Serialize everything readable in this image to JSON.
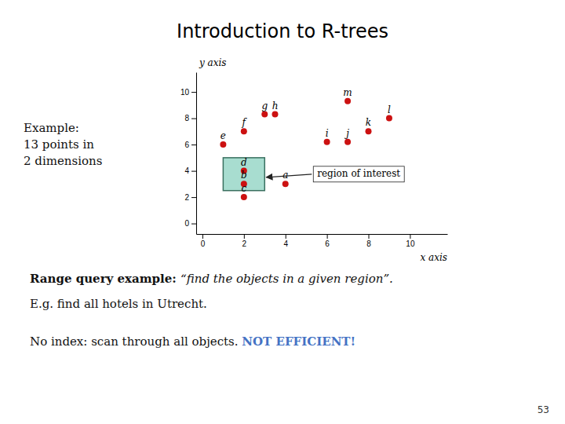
{
  "chart_data": {
    "type": "scatter",
    "title": "Introduction to R-trees",
    "x": [
      4,
      2,
      2,
      2,
      1,
      2,
      3,
      3.5,
      6,
      7,
      8,
      9,
      7
    ],
    "values": [
      3,
      3,
      2,
      4,
      6,
      7,
      8.3,
      8.3,
      6.2,
      6.2,
      7,
      8,
      9.3
    ],
    "labels": [
      "a",
      "b",
      "c",
      "d",
      "e",
      "f",
      "g",
      "h",
      "i",
      "j",
      "k",
      "l",
      "m"
    ],
    "color": "#cc1111",
    "xlim": [
      -0.3,
      11.8
    ],
    "ylim": [
      -0.8,
      11.5
    ],
    "xticks": [
      0,
      2,
      4,
      6,
      8,
      10
    ],
    "yticks": [
      0,
      2,
      4,
      6,
      8,
      10
    ],
    "xlabel": "x axis",
    "ylabel": "y axis",
    "region": {
      "x": 1.0,
      "y": 2.5,
      "width": 2.0,
      "height": 2.5,
      "label": "region of interest",
      "color": "#a8ddd0",
      "edge_color": "#3a7060"
    },
    "side_note": [
      "Example:",
      "13 points in",
      "2 dimensions"
    ],
    "notes": [
      [
        {
          "text": "Range query example: ",
          "weight": "bold"
        },
        {
          "text": "“find the objects in a given region”.",
          "style": "italic"
        }
      ],
      [
        {
          "text": "E.g. find all hotels in Utrecht."
        }
      ],
      [
        {
          "text": "No index: scan through all objects. "
        },
        {
          "text": "NOT EFFICIENT!",
          "weight": "bold",
          "color": "#4472c4"
        }
      ]
    ],
    "page_number": "53"
  }
}
